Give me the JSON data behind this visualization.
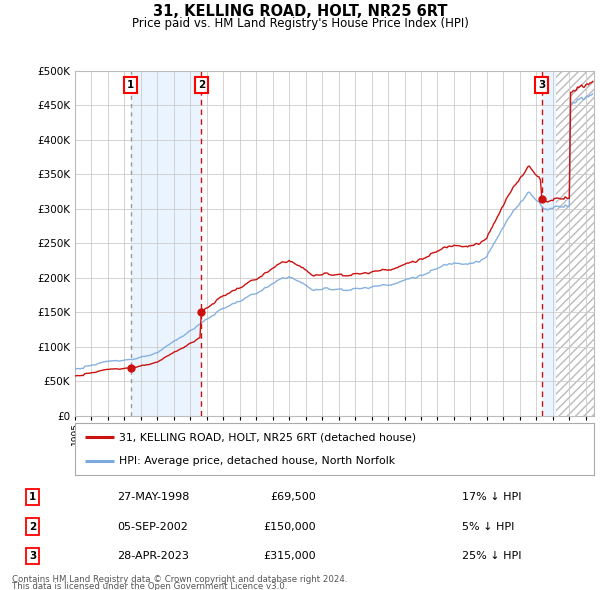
{
  "title": "31, KELLING ROAD, HOLT, NR25 6RT",
  "subtitle": "Price paid vs. HM Land Registry's House Price Index (HPI)",
  "ylim": [
    0,
    500000
  ],
  "yticks": [
    0,
    50000,
    100000,
    150000,
    200000,
    250000,
    300000,
    350000,
    400000,
    450000,
    500000
  ],
  "ytick_labels": [
    "£0",
    "£50K",
    "£100K",
    "£150K",
    "£200K",
    "£250K",
    "£300K",
    "£350K",
    "£400K",
    "£450K",
    "£500K"
  ],
  "xlim_start": 1995.0,
  "xlim_end": 2026.5,
  "hpi_color": "#7aaadd",
  "price_color": "#cc1111",
  "bg_color": "#ffffff",
  "grid_color": "#cccccc",
  "sale_shade_color": "#ddeeff",
  "sale_shade_alpha": 0.6,
  "hatch_color": "#cccccc",
  "sales": [
    {
      "date_num": 1998.38,
      "price": 69500,
      "label": "1",
      "date_str": "27-MAY-1998",
      "price_str": "£69,500",
      "pct_str": "17% ↓ HPI"
    },
    {
      "date_num": 2002.67,
      "price": 150000,
      "label": "2",
      "date_str": "05-SEP-2002",
      "price_str": "£150,000",
      "pct_str": "5% ↓ HPI"
    },
    {
      "date_num": 2023.32,
      "price": 315000,
      "label": "3",
      "date_str": "28-APR-2023",
      "price_str": "£315,000",
      "pct_str": "25% ↓ HPI"
    }
  ],
  "future_start": 2024.17,
  "legend_line1": "31, KELLING ROAD, HOLT, NR25 6RT (detached house)",
  "legend_line2": "HPI: Average price, detached house, North Norfolk",
  "footer1": "Contains HM Land Registry data © Crown copyright and database right 2024.",
  "footer2": "This data is licensed under the Open Government Licence v3.0."
}
